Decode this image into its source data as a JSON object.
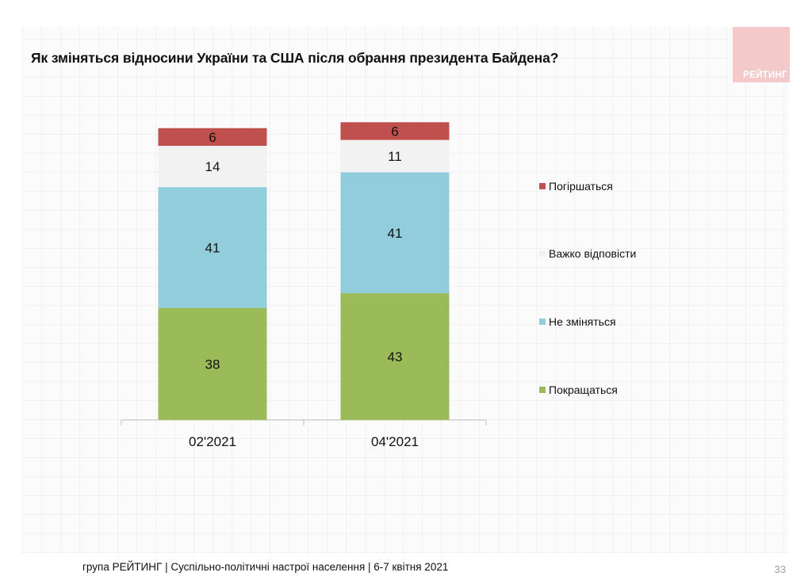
{
  "title": "Як зміняться відносини України та США після обрання президента Байдена?",
  "logo": "РЕЙТИНГ",
  "footer": "група РЕЙТИНГ | Суспільно-політичні настрої населення | 6-7 квітня 2021",
  "page_number": "33",
  "colors": {
    "pogirshatsya": "#c0504d",
    "vazhko": "#f2f2f2",
    "ne_zminyatsya": "#92cddc",
    "pokraschatsya": "#9bbb59",
    "logo_bg": "#f4c9c9"
  },
  "chart_data": {
    "type": "bar",
    "stacked": true,
    "categories": [
      "02'2021",
      "04'2021"
    ],
    "series": [
      {
        "name": "Покращаться",
        "color": "#9bbb59",
        "values": [
          38,
          43
        ]
      },
      {
        "name": "Не зміняться",
        "color": "#92cddc",
        "values": [
          41,
          41
        ]
      },
      {
        "name": "Важко відповісти",
        "color": "#f2f2f2",
        "values": [
          14,
          11
        ]
      },
      {
        "name": "Погіршаться",
        "color": "#c0504d",
        "values": [
          6,
          6
        ]
      }
    ],
    "legend": [
      "Погіршаться",
      "Важко відповісти",
      "Не зміняться",
      "Покращаться"
    ],
    "legend_position": "right",
    "ylim": [
      0,
      100
    ],
    "grid": false,
    "data_labels": true
  }
}
